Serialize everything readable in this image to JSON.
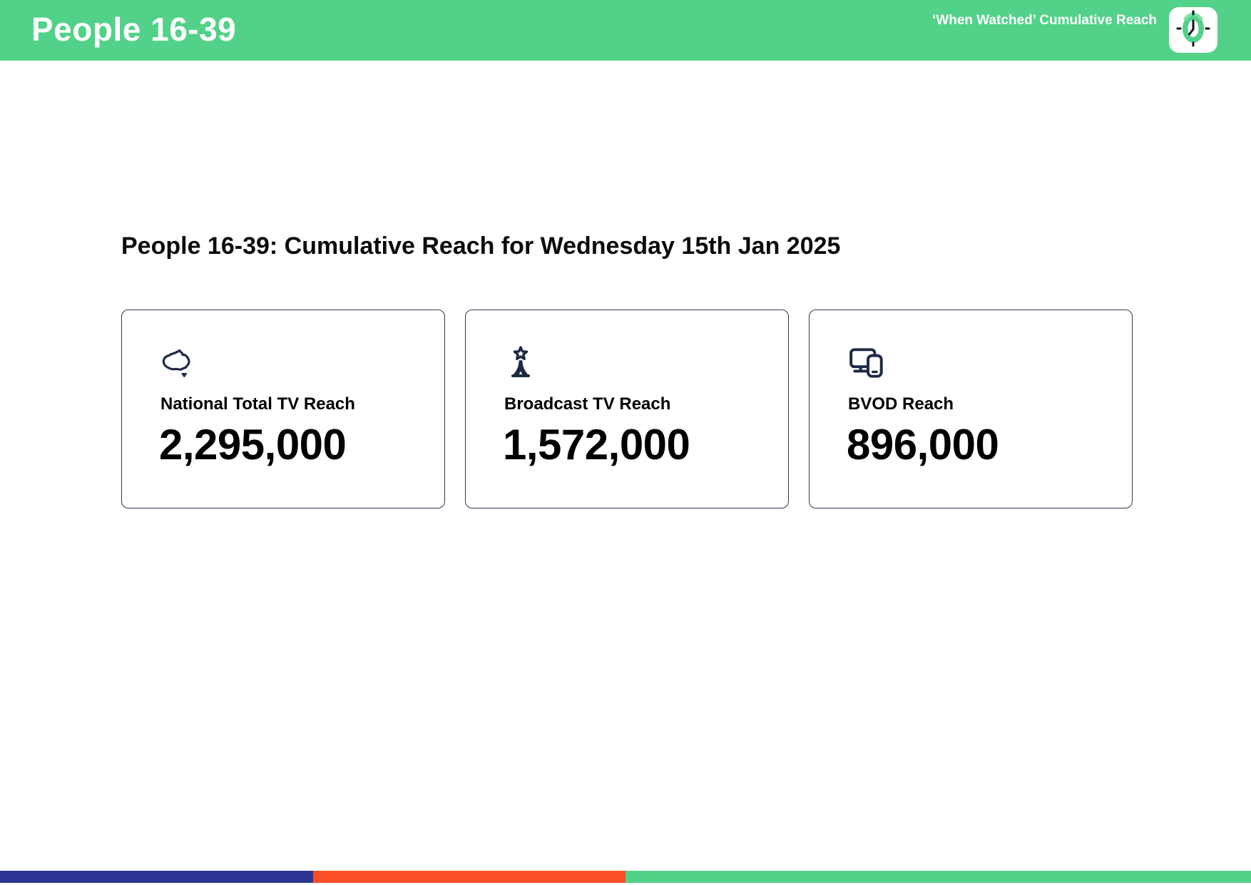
{
  "header": {
    "title": "People 16-39",
    "right_label": "‘When Watched’ Cumulative Reach",
    "logo_icon": "clock-icon",
    "bg_color": "#52D189"
  },
  "main": {
    "heading": "People 16-39: Cumulative Reach for Wednesday 15th Jan 2025",
    "cards": [
      {
        "icon": "australia-map-icon",
        "label": "National Total TV Reach",
        "value": "2,295,000"
      },
      {
        "icon": "broadcast-tower-icon",
        "label": "Broadcast TV Reach",
        "value": "1,572,000"
      },
      {
        "icon": "devices-icon",
        "label": "BVOD Reach",
        "value": "896,000"
      }
    ],
    "icon_color": "#1E2A44",
    "card_border_color": "#2E3B52"
  },
  "footer": {
    "segments": [
      {
        "name": "navy-segment",
        "color": "#2B3492",
        "width_pct": 25
      },
      {
        "name": "orange-segment",
        "color": "#FA4F26",
        "width_pct": 25
      },
      {
        "name": "green-segment",
        "color": "#52D189",
        "width_pct": 50
      }
    ]
  }
}
